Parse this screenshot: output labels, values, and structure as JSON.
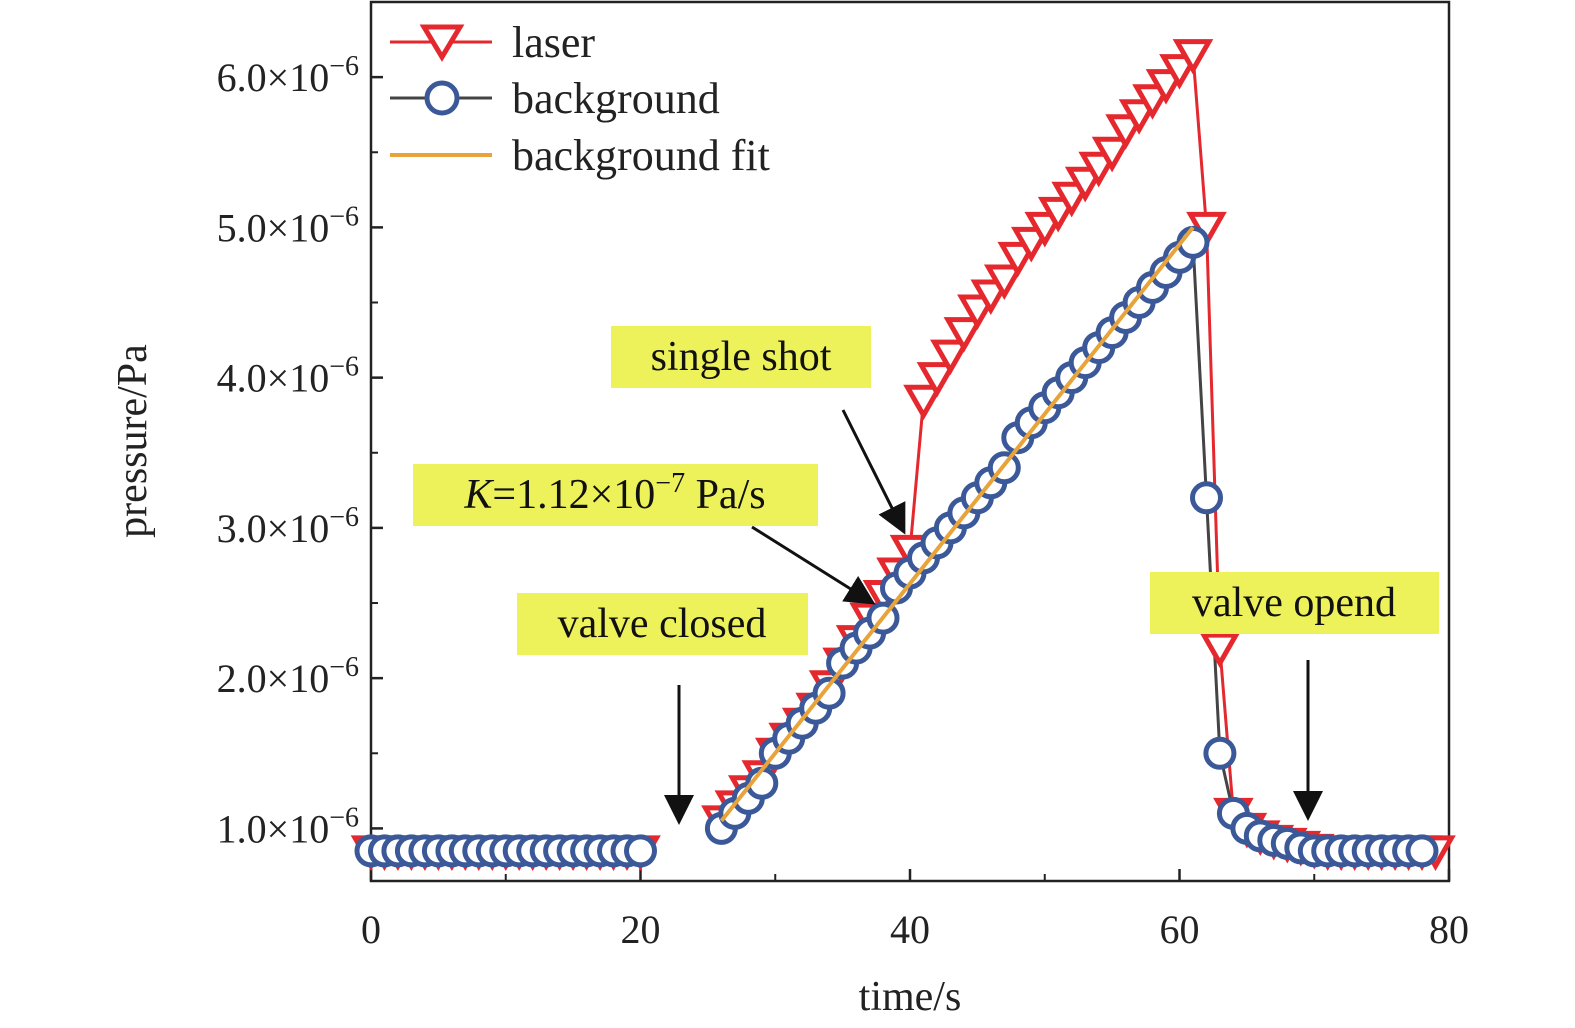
{
  "chart_data": {
    "type": "line",
    "xlabel": "time/s",
    "ylabel": "pressure/Pa",
    "xlim": [
      0,
      80
    ],
    "ylim": [
      6.5e-07,
      6.5e-06
    ],
    "x_ticks": [
      {
        "value": 0,
        "label": "0"
      },
      {
        "value": 20,
        "label": "20"
      },
      {
        "value": 40,
        "label": "40"
      },
      {
        "value": 60,
        "label": "60"
      },
      {
        "value": 80,
        "label": "80"
      }
    ],
    "y_ticks": [
      {
        "value": 1e-06,
        "mantissa": "1.0",
        "base": "×10",
        "exp": "−6"
      },
      {
        "value": 2e-06,
        "mantissa": "2.0",
        "base": "×10",
        "exp": "−6"
      },
      {
        "value": 3e-06,
        "mantissa": "3.0",
        "base": "×10",
        "exp": "−6"
      },
      {
        "value": 4e-06,
        "mantissa": "4.0",
        "base": "×10",
        "exp": "−6"
      },
      {
        "value": 5e-06,
        "mantissa": "5.0",
        "base": "×10",
        "exp": "−6"
      },
      {
        "value": 6e-06,
        "mantissa": "6.0",
        "base": "×10",
        "exp": "−6"
      }
    ],
    "legend_position": "top-left",
    "series": [
      {
        "name": "laser",
        "color": "#e4282e",
        "marker": "triangle-down",
        "points": [
          [
            0,
            8.5e-07
          ],
          [
            1,
            8.5e-07
          ],
          [
            2,
            8.5e-07
          ],
          [
            3,
            8.5e-07
          ],
          [
            4,
            8.5e-07
          ],
          [
            5,
            8.5e-07
          ],
          [
            6,
            8.5e-07
          ],
          [
            7,
            8.5e-07
          ],
          [
            8,
            8.5e-07
          ],
          [
            9,
            8.5e-07
          ],
          [
            10,
            8.5e-07
          ],
          [
            11,
            8.5e-07
          ],
          [
            12,
            8.5e-07
          ],
          [
            13,
            8.5e-07
          ],
          [
            14,
            8.5e-07
          ],
          [
            15,
            8.5e-07
          ],
          [
            16,
            8.5e-07
          ],
          [
            17,
            8.5e-07
          ],
          [
            18,
            8.5e-07
          ],
          [
            19,
            8.5e-07
          ],
          [
            20,
            8.5e-07
          ],
          [
            26,
            1.05e-06
          ],
          [
            27,
            1.15e-06
          ],
          [
            28,
            1.25e-06
          ],
          [
            29,
            1.35e-06
          ],
          [
            30,
            1.5e-06
          ],
          [
            31,
            1.6e-06
          ],
          [
            32,
            1.7e-06
          ],
          [
            33,
            1.8e-06
          ],
          [
            34,
            1.95e-06
          ],
          [
            35,
            2.1e-06
          ],
          [
            36,
            2.25e-06
          ],
          [
            37,
            2.4e-06
          ],
          [
            38,
            2.55e-06
          ],
          [
            39,
            2.7e-06
          ],
          [
            40,
            2.85e-06
          ],
          [
            41,
            3.85e-06
          ],
          [
            42,
            4e-06
          ],
          [
            43,
            4.15e-06
          ],
          [
            44,
            4.3e-06
          ],
          [
            45,
            4.45e-06
          ],
          [
            46,
            4.55e-06
          ],
          [
            47,
            4.65e-06
          ],
          [
            48,
            4.8e-06
          ],
          [
            49,
            4.9e-06
          ],
          [
            50,
            5e-06
          ],
          [
            51,
            5.1e-06
          ],
          [
            52,
            5.2e-06
          ],
          [
            53,
            5.3e-06
          ],
          [
            54,
            5.4e-06
          ],
          [
            55,
            5.5e-06
          ],
          [
            56,
            5.65e-06
          ],
          [
            57,
            5.75e-06
          ],
          [
            58,
            5.85e-06
          ],
          [
            59,
            5.95e-06
          ],
          [
            60,
            6.05e-06
          ],
          [
            61,
            6.15e-06
          ],
          [
            62,
            5e-06
          ],
          [
            63,
            2.2e-06
          ],
          [
            64,
            1.1e-06
          ],
          [
            65,
            1e-06
          ],
          [
            66,
            9.5e-07
          ],
          [
            67,
            9.2e-07
          ],
          [
            68,
            9e-07
          ],
          [
            69,
            8.8e-07
          ],
          [
            70,
            8.6e-07
          ],
          [
            71,
            8.5e-07
          ],
          [
            72,
            8.5e-07
          ],
          [
            73,
            8.5e-07
          ],
          [
            74,
            8.5e-07
          ],
          [
            75,
            8.5e-07
          ],
          [
            76,
            8.5e-07
          ],
          [
            77,
            8.5e-07
          ],
          [
            78,
            8.5e-07
          ],
          [
            79,
            8.5e-07
          ]
        ]
      },
      {
        "name": "background",
        "color": "#3b5998",
        "line_color": "#444444",
        "marker": "circle",
        "points": [
          [
            0,
            8.5e-07
          ],
          [
            1,
            8.5e-07
          ],
          [
            2,
            8.5e-07
          ],
          [
            3,
            8.5e-07
          ],
          [
            4,
            8.5e-07
          ],
          [
            5,
            8.5e-07
          ],
          [
            6,
            8.5e-07
          ],
          [
            7,
            8.5e-07
          ],
          [
            8,
            8.5e-07
          ],
          [
            9,
            8.5e-07
          ],
          [
            10,
            8.5e-07
          ],
          [
            11,
            8.5e-07
          ],
          [
            12,
            8.5e-07
          ],
          [
            13,
            8.5e-07
          ],
          [
            14,
            8.5e-07
          ],
          [
            15,
            8.5e-07
          ],
          [
            16,
            8.5e-07
          ],
          [
            17,
            8.5e-07
          ],
          [
            18,
            8.5e-07
          ],
          [
            19,
            8.5e-07
          ],
          [
            20,
            8.5e-07
          ],
          [
            26,
            1e-06
          ],
          [
            27,
            1.1e-06
          ],
          [
            28,
            1.2e-06
          ],
          [
            29,
            1.3e-06
          ],
          [
            30,
            1.5e-06
          ],
          [
            31,
            1.6e-06
          ],
          [
            32,
            1.7e-06
          ],
          [
            33,
            1.8e-06
          ],
          [
            34,
            1.9e-06
          ],
          [
            35,
            2.1e-06
          ],
          [
            36,
            2.2e-06
          ],
          [
            37,
            2.3e-06
          ],
          [
            38,
            2.4e-06
          ],
          [
            39,
            2.6e-06
          ],
          [
            40,
            2.7e-06
          ],
          [
            41,
            2.8e-06
          ],
          [
            42,
            2.9e-06
          ],
          [
            43,
            3e-06
          ],
          [
            44,
            3.1e-06
          ],
          [
            45,
            3.2e-06
          ],
          [
            46,
            3.3e-06
          ],
          [
            47,
            3.4e-06
          ],
          [
            48,
            3.6e-06
          ],
          [
            49,
            3.7e-06
          ],
          [
            50,
            3.8e-06
          ],
          [
            51,
            3.9e-06
          ],
          [
            52,
            4e-06
          ],
          [
            53,
            4.1e-06
          ],
          [
            54,
            4.2e-06
          ],
          [
            55,
            4.3e-06
          ],
          [
            56,
            4.4e-06
          ],
          [
            57,
            4.5e-06
          ],
          [
            58,
            4.6e-06
          ],
          [
            59,
            4.7e-06
          ],
          [
            60,
            4.8e-06
          ],
          [
            61,
            4.9e-06
          ],
          [
            62,
            3.2e-06
          ],
          [
            63,
            1.5e-06
          ],
          [
            64,
            1.1e-06
          ],
          [
            65,
            1e-06
          ],
          [
            66,
            9.5e-07
          ],
          [
            67,
            9.2e-07
          ],
          [
            68,
            9e-07
          ],
          [
            69,
            8.7e-07
          ],
          [
            70,
            8.5e-07
          ],
          [
            71,
            8.5e-07
          ],
          [
            72,
            8.5e-07
          ],
          [
            73,
            8.5e-07
          ],
          [
            74,
            8.5e-07
          ],
          [
            75,
            8.5e-07
          ],
          [
            76,
            8.5e-07
          ],
          [
            77,
            8.5e-07
          ],
          [
            78,
            8.5e-07
          ]
        ]
      },
      {
        "name": "background fit",
        "color": "#e8a33a",
        "marker": "none",
        "points": [
          [
            26,
            1.05e-06
          ],
          [
            61,
            5e-06
          ]
        ]
      }
    ],
    "annotations": [
      {
        "id": "single-shot",
        "text": "single shot",
        "box_color": "#eef25a"
      },
      {
        "id": "k-value",
        "text_italic": "K",
        "text_main": "=1.12×10",
        "text_sup": "−7",
        "text_tail": " Pa/s",
        "box_color": "#eef25a"
      },
      {
        "id": "valve-closed",
        "text": "valve closed",
        "box_color": "#eef25a"
      },
      {
        "id": "valve-opend",
        "text": "valve opend",
        "box_color": "#eef25a"
      }
    ]
  }
}
